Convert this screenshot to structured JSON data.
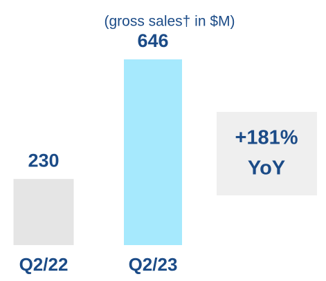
{
  "chart_data": {
    "type": "bar",
    "subtitle": "(gross sales† in $M)",
    "categories": [
      "Q2/22",
      "Q2/23"
    ],
    "values": [
      230,
      646
    ],
    "colors": [
      "#e5e5e5",
      "#a6e9fd"
    ],
    "annotation": [
      "+181%",
      "YoY"
    ]
  }
}
